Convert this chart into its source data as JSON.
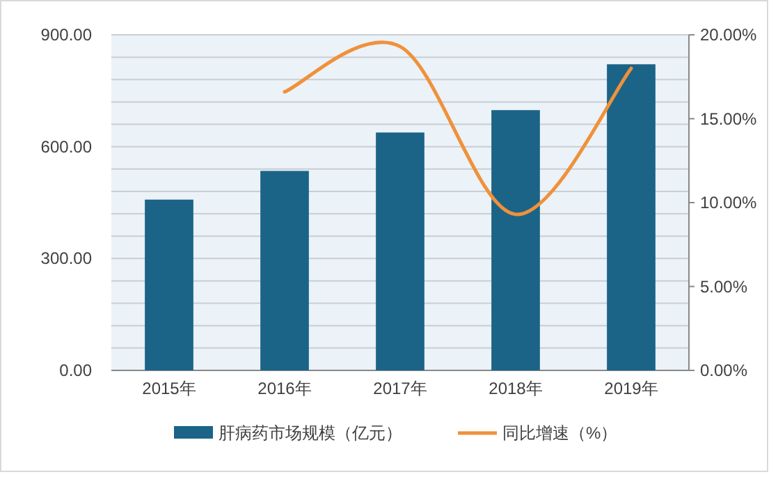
{
  "chart_data": {
    "type": "bar",
    "categories": [
      "2015年",
      "2016年",
      "2017年",
      "2018年",
      "2019年"
    ],
    "series": [
      {
        "name": "肝病药市场规模（亿元）",
        "color": "#1b6488",
        "values": [
          458,
          535,
          638,
          698,
          821
        ]
      },
      {
        "name": "同比增速（%）",
        "type": "line",
        "axis": "y2",
        "color": "#f0913a",
        "values": [
          null,
          16.6,
          19.3,
          9.3,
          18.0
        ]
      }
    ],
    "ylim": [
      0,
      900
    ],
    "yticks": [
      {
        "value": 0,
        "label": "0.00"
      },
      {
        "value": 60,
        "label": null
      },
      {
        "value": 120,
        "label": null
      },
      {
        "value": 180,
        "label": null
      },
      {
        "value": 240,
        "label": null
      },
      {
        "value": 300,
        "label": "300.00"
      },
      {
        "value": 360,
        "label": null
      },
      {
        "value": 420,
        "label": null
      },
      {
        "value": 480,
        "label": null
      },
      {
        "value": 540,
        "label": null
      },
      {
        "value": 600,
        "label": "600.00"
      },
      {
        "value": 660,
        "label": null
      },
      {
        "value": 720,
        "label": null
      },
      {
        "value": 780,
        "label": null
      },
      {
        "value": 840,
        "label": null
      },
      {
        "value": 900,
        "label": "900.00"
      }
    ],
    "y2lim": [
      0,
      20
    ],
    "y2ticks": [
      {
        "value": 0,
        "label": "0.00%"
      },
      {
        "value": 5,
        "label": "5.00%"
      },
      {
        "value": 10,
        "label": "10.00%"
      },
      {
        "value": 15,
        "label": "15.00%"
      },
      {
        "value": 20,
        "label": "20.00%"
      }
    ],
    "grid": "y",
    "legend": "bottom",
    "marker": "none",
    "line_style": "solid"
  }
}
